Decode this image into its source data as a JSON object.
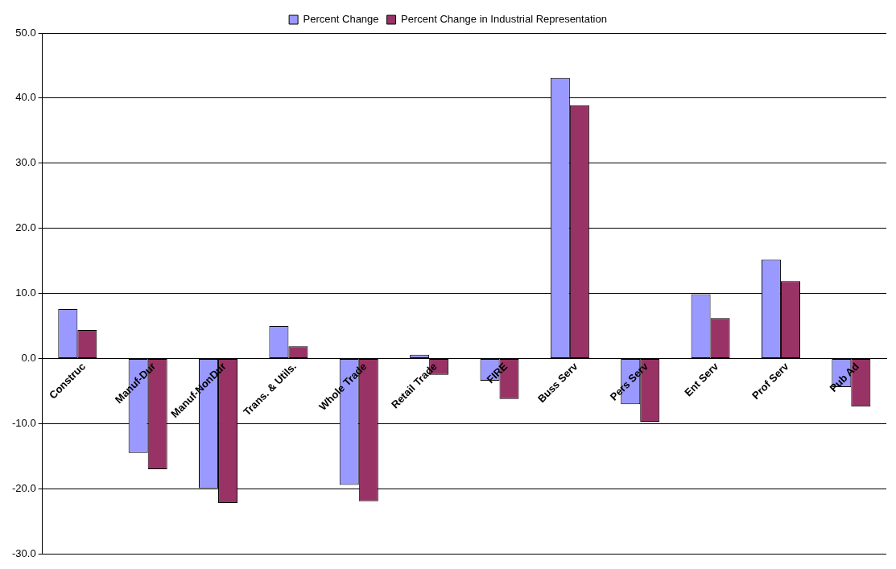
{
  "chart_data": {
    "type": "bar",
    "categories": [
      "Construc",
      "Manuf-Dur",
      "Manuf-NonDur",
      "Trans. & Utils.",
      "Whole Trade",
      "Retail Trade",
      "FIRE",
      "Buss Serv",
      "Pers Serv",
      "Ent Serv",
      "Prof Serv",
      "Pub Ad"
    ],
    "series": [
      {
        "name": "Percent Change",
        "color": "#9999ff",
        "values": [
          7.6,
          -14.5,
          -19.9,
          5.0,
          -19.4,
          0.6,
          -3.4,
          43.1,
          -7.0,
          9.9,
          15.2,
          -4.4
        ]
      },
      {
        "name": "Percent Change in Industrial Representation",
        "color": "#993366",
        "values": [
          4.4,
          -17.0,
          -22.2,
          1.9,
          -21.9,
          -2.5,
          -6.2,
          38.9,
          -9.7,
          6.2,
          11.9,
          -7.4
        ]
      }
    ],
    "ylim": [
      -30,
      50
    ],
    "yticks": [
      {
        "value": -30,
        "label": "-30.0"
      },
      {
        "value": -20,
        "label": "-20.0"
      },
      {
        "value": -10,
        "label": "-10.0"
      },
      {
        "value": 0,
        "label": "0.0"
      },
      {
        "value": 10,
        "label": "10.0"
      },
      {
        "value": 20,
        "label": "20.0"
      },
      {
        "value": 30,
        "label": "30.0"
      },
      {
        "value": 40,
        "label": "40.0"
      },
      {
        "value": 50,
        "label": "50.0"
      }
    ],
    "grid": "y",
    "legend": "top"
  }
}
